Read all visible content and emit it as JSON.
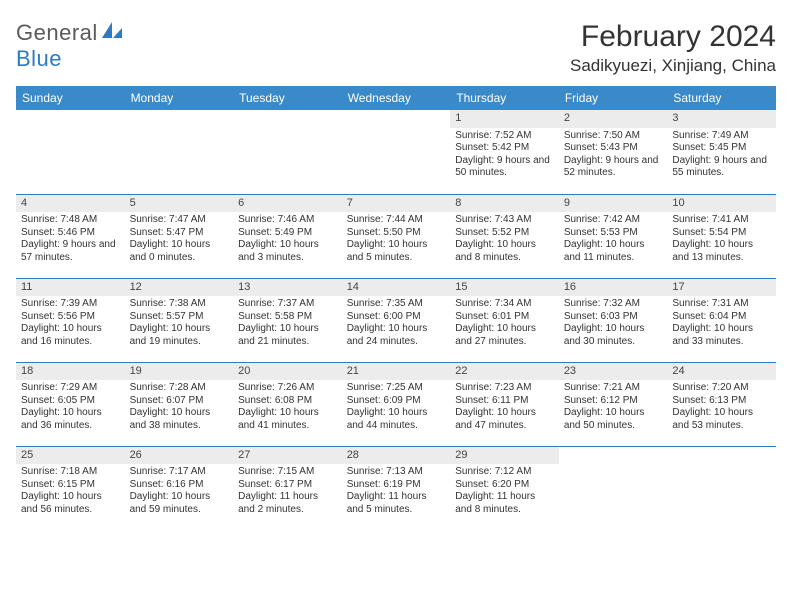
{
  "brand": {
    "name_a": "General",
    "name_b": "Blue"
  },
  "title": "February 2024",
  "location": "Sadikyuezi, Xinjiang, China",
  "colors": {
    "header_bg": "#3a89c9",
    "header_text": "#ffffff",
    "rule": "#2d7bc0",
    "daynum_bg": "#ececec",
    "text": "#333333",
    "brand_gray": "#5a5a5a",
    "brand_blue": "#2d7bc0"
  },
  "weekdays": [
    "Sunday",
    "Monday",
    "Tuesday",
    "Wednesday",
    "Thursday",
    "Friday",
    "Saturday"
  ],
  "weeks": [
    [
      null,
      null,
      null,
      null,
      {
        "n": "1",
        "sr": "7:52 AM",
        "ss": "5:42 PM",
        "dl": "9 hours and 50 minutes."
      },
      {
        "n": "2",
        "sr": "7:50 AM",
        "ss": "5:43 PM",
        "dl": "9 hours and 52 minutes."
      },
      {
        "n": "3",
        "sr": "7:49 AM",
        "ss": "5:45 PM",
        "dl": "9 hours and 55 minutes."
      }
    ],
    [
      {
        "n": "4",
        "sr": "7:48 AM",
        "ss": "5:46 PM",
        "dl": "9 hours and 57 minutes."
      },
      {
        "n": "5",
        "sr": "7:47 AM",
        "ss": "5:47 PM",
        "dl": "10 hours and 0 minutes."
      },
      {
        "n": "6",
        "sr": "7:46 AM",
        "ss": "5:49 PM",
        "dl": "10 hours and 3 minutes."
      },
      {
        "n": "7",
        "sr": "7:44 AM",
        "ss": "5:50 PM",
        "dl": "10 hours and 5 minutes."
      },
      {
        "n": "8",
        "sr": "7:43 AM",
        "ss": "5:52 PM",
        "dl": "10 hours and 8 minutes."
      },
      {
        "n": "9",
        "sr": "7:42 AM",
        "ss": "5:53 PM",
        "dl": "10 hours and 11 minutes."
      },
      {
        "n": "10",
        "sr": "7:41 AM",
        "ss": "5:54 PM",
        "dl": "10 hours and 13 minutes."
      }
    ],
    [
      {
        "n": "11",
        "sr": "7:39 AM",
        "ss": "5:56 PM",
        "dl": "10 hours and 16 minutes."
      },
      {
        "n": "12",
        "sr": "7:38 AM",
        "ss": "5:57 PM",
        "dl": "10 hours and 19 minutes."
      },
      {
        "n": "13",
        "sr": "7:37 AM",
        "ss": "5:58 PM",
        "dl": "10 hours and 21 minutes."
      },
      {
        "n": "14",
        "sr": "7:35 AM",
        "ss": "6:00 PM",
        "dl": "10 hours and 24 minutes."
      },
      {
        "n": "15",
        "sr": "7:34 AM",
        "ss": "6:01 PM",
        "dl": "10 hours and 27 minutes."
      },
      {
        "n": "16",
        "sr": "7:32 AM",
        "ss": "6:03 PM",
        "dl": "10 hours and 30 minutes."
      },
      {
        "n": "17",
        "sr": "7:31 AM",
        "ss": "6:04 PM",
        "dl": "10 hours and 33 minutes."
      }
    ],
    [
      {
        "n": "18",
        "sr": "7:29 AM",
        "ss": "6:05 PM",
        "dl": "10 hours and 36 minutes."
      },
      {
        "n": "19",
        "sr": "7:28 AM",
        "ss": "6:07 PM",
        "dl": "10 hours and 38 minutes."
      },
      {
        "n": "20",
        "sr": "7:26 AM",
        "ss": "6:08 PM",
        "dl": "10 hours and 41 minutes."
      },
      {
        "n": "21",
        "sr": "7:25 AM",
        "ss": "6:09 PM",
        "dl": "10 hours and 44 minutes."
      },
      {
        "n": "22",
        "sr": "7:23 AM",
        "ss": "6:11 PM",
        "dl": "10 hours and 47 minutes."
      },
      {
        "n": "23",
        "sr": "7:21 AM",
        "ss": "6:12 PM",
        "dl": "10 hours and 50 minutes."
      },
      {
        "n": "24",
        "sr": "7:20 AM",
        "ss": "6:13 PM",
        "dl": "10 hours and 53 minutes."
      }
    ],
    [
      {
        "n": "25",
        "sr": "7:18 AM",
        "ss": "6:15 PM",
        "dl": "10 hours and 56 minutes."
      },
      {
        "n": "26",
        "sr": "7:17 AM",
        "ss": "6:16 PM",
        "dl": "10 hours and 59 minutes."
      },
      {
        "n": "27",
        "sr": "7:15 AM",
        "ss": "6:17 PM",
        "dl": "11 hours and 2 minutes."
      },
      {
        "n": "28",
        "sr": "7:13 AM",
        "ss": "6:19 PM",
        "dl": "11 hours and 5 minutes."
      },
      {
        "n": "29",
        "sr": "7:12 AM",
        "ss": "6:20 PM",
        "dl": "11 hours and 8 minutes."
      },
      null,
      null
    ]
  ],
  "labels": {
    "sunrise": "Sunrise: ",
    "sunset": "Sunset: ",
    "daylight": "Daylight: "
  }
}
